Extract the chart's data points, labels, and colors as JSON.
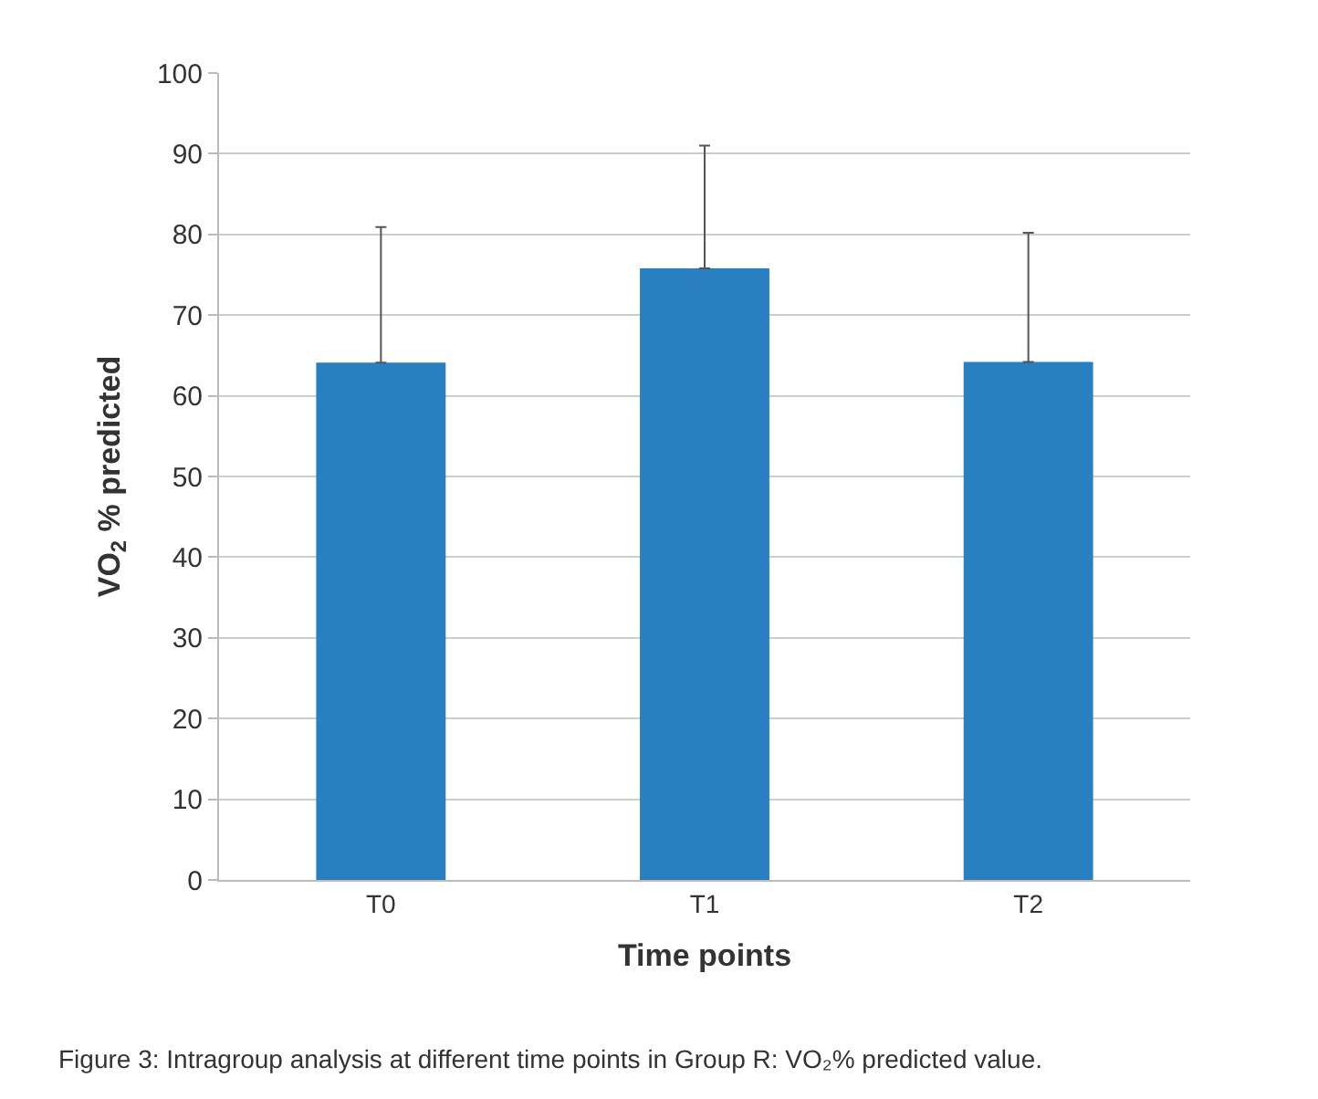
{
  "chart_data": {
    "type": "bar",
    "categories": [
      "T0",
      "T1",
      "T2"
    ],
    "values": [
      64.1,
      75.8,
      64.2
    ],
    "errors": [
      [
        64.1,
        80.9
      ],
      [
        75.8,
        91.0
      ],
      [
        64.2,
        80.2
      ]
    ],
    "color": "#2a7fc1",
    "xlabel": "Time points",
    "ylabel": "VO$_{2}$ % predicted",
    "ylim": [
      0,
      100
    ],
    "yticks": [
      0,
      10,
      20,
      30,
      40,
      50,
      60,
      70,
      80,
      90,
      100
    ],
    "grid": "y",
    "annotations": [
      "Figure 3: Intragroup analysis at different time points in Group R: VO₂% predicted value."
    ]
  }
}
